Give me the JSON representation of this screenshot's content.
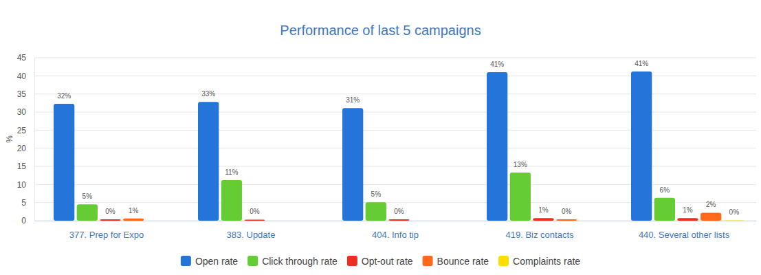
{
  "chart_data": {
    "type": "bar",
    "title": "Performance of last 5 campaigns",
    "y_label": "%",
    "categories": [
      "377. Prep for Expo",
      "383. Update",
      "404. Info tip",
      "419. Biz contacts",
      "440. Several other lists"
    ],
    "series": [
      {
        "name": "Open rate",
        "color": "#2574d9",
        "values": [
          32.3,
          32.8,
          31.1,
          41.0,
          41.2
        ],
        "value_labels": [
          "32%",
          "33%",
          "31%",
          "41%",
          "41%"
        ]
      },
      {
        "name": "Click through rate",
        "color": "#66cc33",
        "values": [
          4.5,
          11.2,
          5.1,
          13.3,
          6.3
        ],
        "value_labels": [
          "5%",
          "11%",
          "5%",
          "13%",
          "6%"
        ]
      },
      {
        "name": "Opt-out rate",
        "color": "#ee2e24",
        "values": [
          0.4,
          0.3,
          0.4,
          0.7,
          0.7
        ],
        "value_labels": [
          "0%",
          "0%",
          "0%",
          "1%",
          "1%"
        ]
      },
      {
        "name": "Bounce rate",
        "color": "#ff6a1a",
        "values": [
          0.6,
          null,
          null,
          0.4,
          2.2
        ],
        "value_labels": [
          "1%",
          null,
          null,
          "0%",
          "2%"
        ]
      },
      {
        "name": "Complaints rate",
        "color": "#ffdd00",
        "values": [
          null,
          null,
          null,
          null,
          0.1
        ],
        "value_labels": [
          null,
          null,
          null,
          null,
          "0%"
        ]
      }
    ],
    "ylim": [
      0,
      45
    ],
    "yticks": [
      0,
      5,
      10,
      15,
      20,
      25,
      30,
      35,
      40,
      45
    ],
    "grid": true,
    "data_labels": true,
    "legend": "bottom"
  }
}
